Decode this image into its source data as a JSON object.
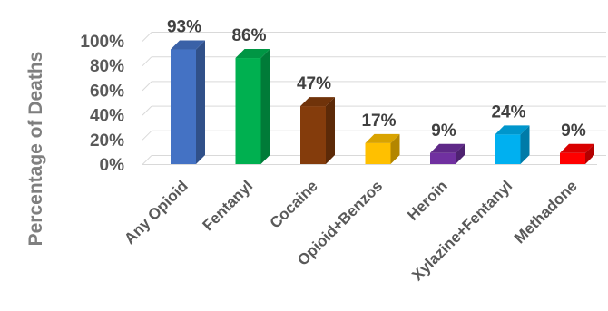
{
  "chart_data": {
    "type": "bar",
    "ylabel": "Percentage of Deaths",
    "categories": [
      "Any Opioid",
      "Fentanyl",
      "Cocaine",
      "Opioid+Benzos",
      "Heroin",
      "Xylazine+Fentanyl",
      "Methadone"
    ],
    "values": [
      93,
      86,
      47,
      17,
      9,
      24,
      9
    ],
    "data_labels": [
      "93%",
      "86%",
      "47%",
      "17%",
      "9%",
      "24%",
      "9%"
    ],
    "ylim": [
      0,
      100
    ],
    "yticks": [
      0,
      20,
      40,
      60,
      80,
      100
    ],
    "ytick_labels": [
      "0%",
      "20%",
      "40%",
      "60%",
      "80%",
      "100%"
    ],
    "grid": true,
    "legend": false,
    "colors": [
      "#4472c4",
      "#00b050",
      "#843c0c",
      "#ffc000",
      "#7030a0",
      "#00b0f0",
      "#ff0000"
    ]
  }
}
